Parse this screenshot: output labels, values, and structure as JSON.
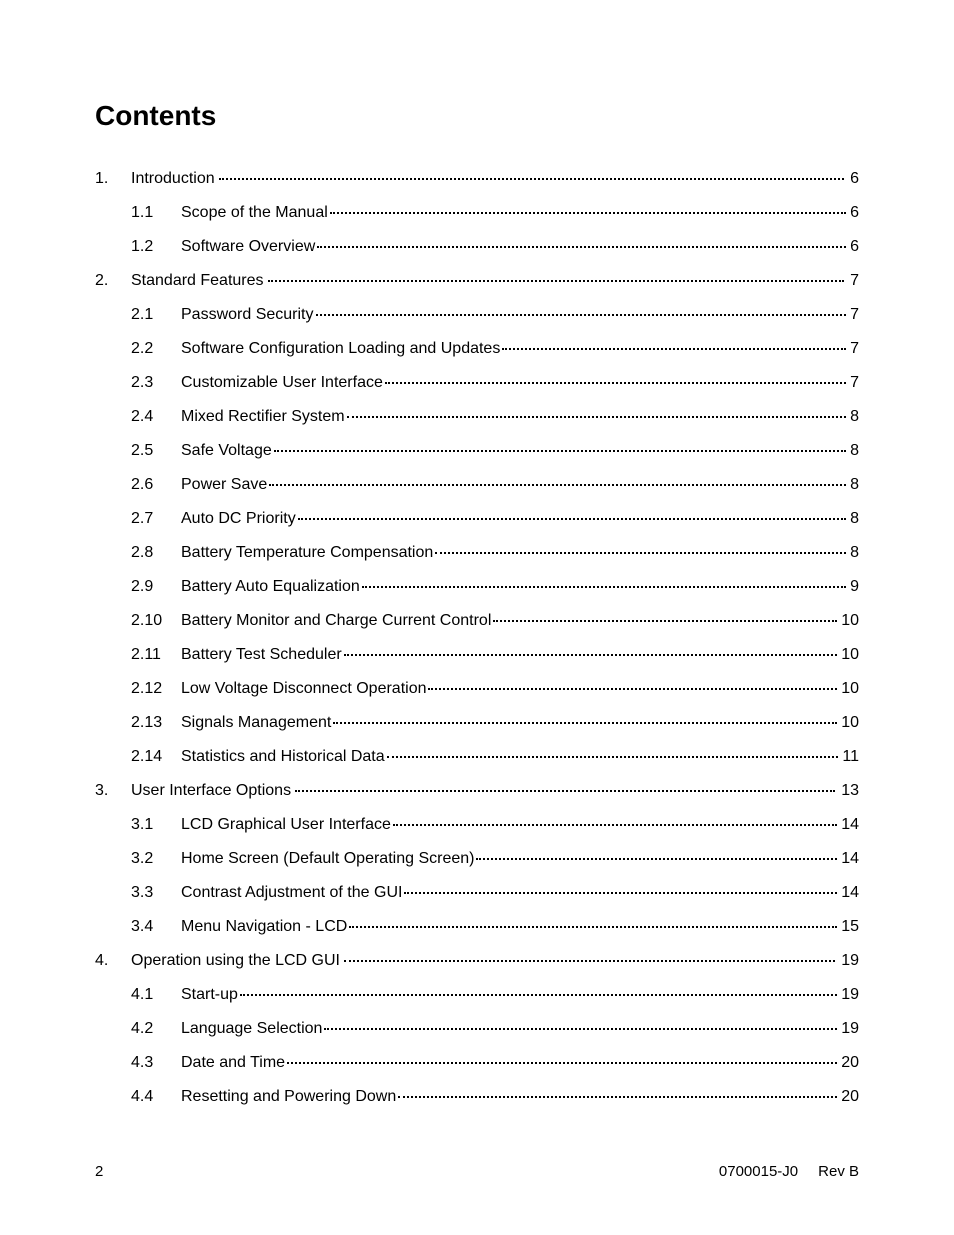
{
  "title": "Contents",
  "sections": [
    {
      "num": "1.",
      "title": "Introduction",
      "page": "6",
      "subsections": [
        {
          "num": "1.1",
          "title": "Scope of the Manual",
          "page": "6"
        },
        {
          "num": "1.2",
          "title": "Software Overview",
          "page": "6"
        }
      ]
    },
    {
      "num": "2.",
      "title": "Standard Features",
      "page": "7",
      "subsections": [
        {
          "num": "2.1",
          "title": "Password Security",
          "page": "7"
        },
        {
          "num": "2.2",
          "title": "Software Configuration Loading and Updates",
          "page": "7"
        },
        {
          "num": "2.3",
          "title": "Customizable User Interface",
          "page": "7"
        },
        {
          "num": "2.4",
          "title": "Mixed Rectifier System",
          "page": "8"
        },
        {
          "num": "2.5",
          "title": "Safe Voltage",
          "page": "8"
        },
        {
          "num": "2.6",
          "title": "Power Save",
          "page": "8"
        },
        {
          "num": "2.7",
          "title": "Auto DC Priority",
          "page": "8"
        },
        {
          "num": "2.8",
          "title": "Battery Temperature Compensation",
          "page": "8"
        },
        {
          "num": "2.9",
          "title": "Battery Auto Equalization",
          "page": "9"
        },
        {
          "num": "2.10",
          "title": "Battery Monitor and Charge Current Control",
          "page": "10"
        },
        {
          "num": "2.11",
          "title": "Battery Test Scheduler",
          "page": "10"
        },
        {
          "num": "2.12",
          "title": "Low Voltage Disconnect Operation",
          "page": "10"
        },
        {
          "num": "2.13",
          "title": "Signals Management",
          "page": "10"
        },
        {
          "num": "2.14",
          "title": "Statistics and Historical Data",
          "page": "11"
        }
      ]
    },
    {
      "num": "3.",
      "title": "User Interface Options",
      "page": "13",
      "subsections": [
        {
          "num": "3.1",
          "title": "LCD Graphical User Interface",
          "page": "14"
        },
        {
          "num": "3.2",
          "title": "Home Screen (Default Operating Screen)",
          "page": "14"
        },
        {
          "num": "3.3",
          "title": "Contrast Adjustment of the GUI",
          "page": "14"
        },
        {
          "num": "3.4",
          "title": "Menu Navigation - LCD",
          "page": "15"
        }
      ]
    },
    {
      "num": "4.",
      "title": "Operation using the LCD GUI",
      "page": "19",
      "subsections": [
        {
          "num": "4.1",
          "title": "Start-up",
          "page": "19"
        },
        {
          "num": "4.2",
          "title": "Language Selection",
          "page": "19"
        },
        {
          "num": "4.3",
          "title": "Date and Time",
          "page": "20"
        },
        {
          "num": "4.4",
          "title": "Resetting and Powering Down",
          "page": "20"
        }
      ]
    }
  ],
  "footer": {
    "pageNumber": "2",
    "docNumber": "0700015-J0",
    "revision": "Rev B"
  }
}
